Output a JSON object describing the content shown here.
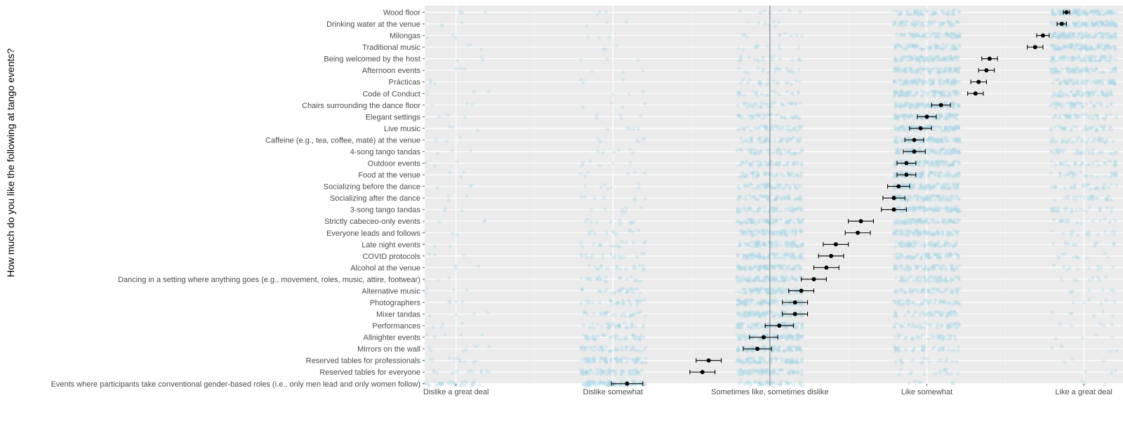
{
  "chart_data": {
    "type": "scatter",
    "ylabel": "How much do you like the following at tango events?",
    "x_ticks": [
      "Dislike a great deal",
      "Dislike somewhat",
      "Sometimes like, sometimes dislike",
      "Like somewhat",
      "Like a great deal"
    ],
    "xlim": [
      0.8,
      5.25
    ],
    "reference_line": 3,
    "grid": true,
    "point_color": "#add8e6",
    "panel_color": "#ebebeb",
    "categories": [
      "Wood floor",
      "Drinking water at the venue",
      "Milongas",
      "Traditional music",
      "Being welcomed by the host",
      "Afternoon events",
      "Prácticas",
      "Code of Conduct",
      "Chairs surrounding the dance floor",
      "Elegant settings",
      "Live music",
      "Caffeine (e.g., tea, coffee, maté) at the venue",
      "4-song tango tandas",
      "Outdoor events",
      "Food at the venue",
      "Socializing before the dance",
      "Socializing after the dance",
      "3-song tango tandas",
      "Strictly cabeceo-only events",
      "Everyone leads and follows",
      "Late night events",
      "COVID protocols",
      "Alcohol at the venue",
      "Dancing in a setting where anything goes (e.g., movement, roles, music, attire, footwear)",
      "Alternative music",
      "Photographers",
      "Mixer tandas",
      "Performances",
      "Allnighter events",
      "Mirrors on the wall",
      "Reserved tables for professionals",
      "Reserved tables for everyone",
      "Events where participants take conventional gender-based roles (i.e., only men lead and only women follow)"
    ],
    "series": [
      {
        "means": [
          4.89,
          4.86,
          4.74,
          4.69,
          4.4,
          4.38,
          4.33,
          4.31,
          4.09,
          4.0,
          3.96,
          3.92,
          3.92,
          3.87,
          3.87,
          3.82,
          3.79,
          3.79,
          3.58,
          3.56,
          3.42,
          3.39,
          3.36,
          3.28,
          3.2,
          3.16,
          3.16,
          3.06,
          2.96,
          2.92,
          2.61,
          2.57,
          2.09
        ],
        "ci_low": [
          4.87,
          4.83,
          4.7,
          4.64,
          4.35,
          4.33,
          4.28,
          4.26,
          4.03,
          3.94,
          3.89,
          3.86,
          3.85,
          3.81,
          3.81,
          3.75,
          3.72,
          3.71,
          3.5,
          3.48,
          3.34,
          3.31,
          3.28,
          3.2,
          3.12,
          3.08,
          3.08,
          2.97,
          2.87,
          2.83,
          2.53,
          2.49,
          1.99
        ],
        "ci_high": [
          4.91,
          4.89,
          4.78,
          4.74,
          4.45,
          4.43,
          4.38,
          4.36,
          4.15,
          4.06,
          4.03,
          3.98,
          3.99,
          3.93,
          3.93,
          3.89,
          3.86,
          3.87,
          3.66,
          3.64,
          3.5,
          3.47,
          3.44,
          3.36,
          3.28,
          3.24,
          3.24,
          3.15,
          3.05,
          3.01,
          2.69,
          2.65,
          2.19
        ]
      }
    ]
  }
}
